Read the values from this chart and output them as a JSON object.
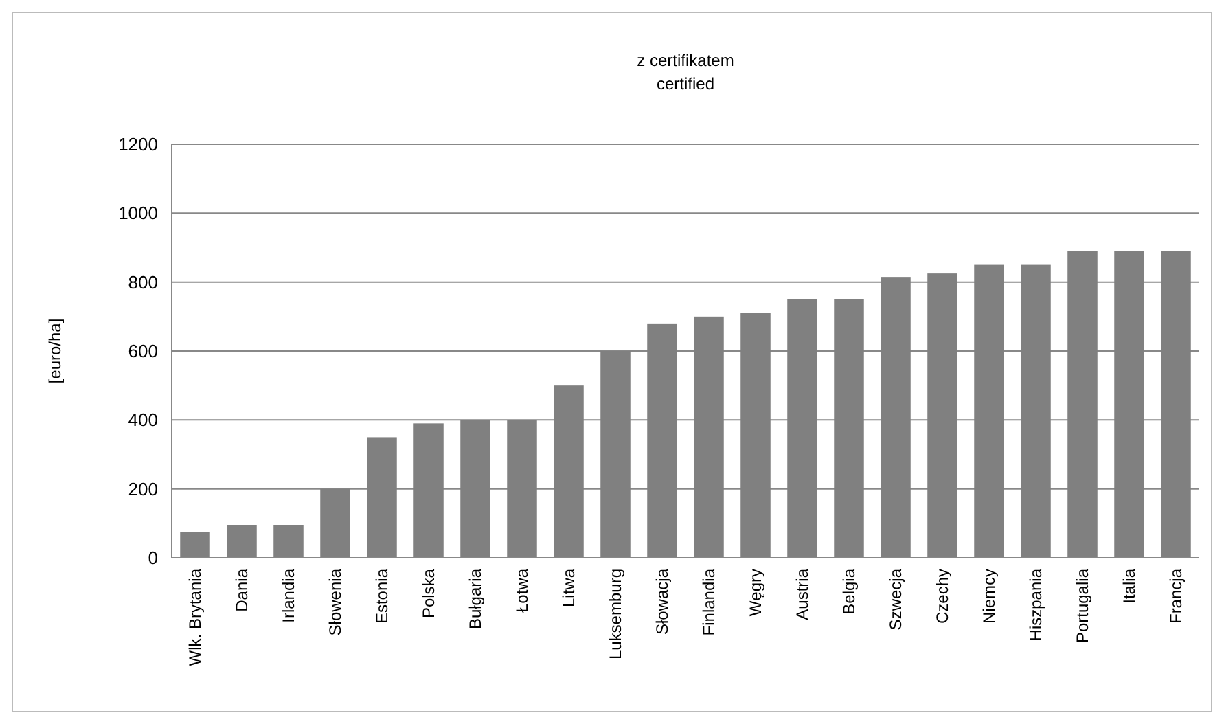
{
  "chart_data": {
    "type": "bar",
    "title": "z certifikatem",
    "subtitle": "certified",
    "ylabel": "[euro/ha]",
    "categories": [
      "Wlk. Brytania",
      "Dania",
      "Irlandia",
      "Słowenia",
      "Estonia",
      "Polska",
      "Bułgaria",
      "Łotwa",
      "Litwa",
      "Luksemburg",
      "Słowacja",
      "Finlandia",
      "Węgry",
      "Austria",
      "Belgia",
      "Szwecja",
      "Czechy",
      "Niemcy",
      "Hiszpania",
      "Portugalia",
      "Italia",
      "Francja"
    ],
    "values": [
      75,
      95,
      95,
      200,
      350,
      390,
      400,
      400,
      500,
      600,
      680,
      700,
      710,
      750,
      750,
      815,
      825,
      850,
      850,
      890,
      890,
      890
    ],
    "color": "#808080",
    "ylim": [
      0,
      1200
    ],
    "yticks": [
      0,
      200,
      400,
      600,
      800,
      1000,
      1200
    ],
    "grid": "y"
  }
}
